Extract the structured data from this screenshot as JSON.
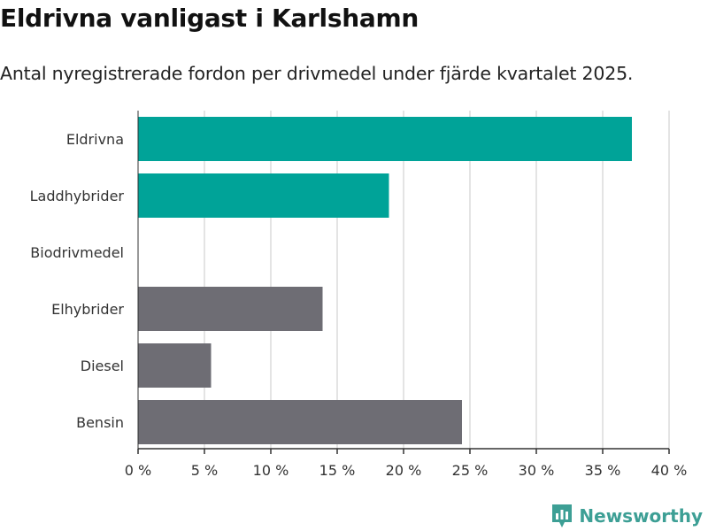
{
  "title": "Eldrivna vanligast i Karlshamn",
  "subtitle": "Antal nyregistrerade fordon per drivmedel under fjärde kvartalet 2025.",
  "brand": {
    "name": "Newsworthy",
    "icon": "newsworthy-logo-icon",
    "color": "#3d9f95"
  },
  "chart_data": {
    "type": "bar",
    "orientation": "horizontal",
    "categories": [
      "Eldrivna",
      "Laddhybrider",
      "Biodrivmedel",
      "Elhybrider",
      "Diesel",
      "Bensin"
    ],
    "values": [
      37.2,
      18.9,
      0,
      13.9,
      5.5,
      24.4
    ],
    "colors": [
      "#00a398",
      "#00a398",
      "#00a398",
      "#6e6d74",
      "#6e6d74",
      "#6e6d74"
    ],
    "xlim": [
      0,
      40
    ],
    "xticks": [
      0,
      5,
      10,
      15,
      20,
      25,
      30,
      35,
      40
    ],
    "tick_suffix": " %",
    "grid": true
  }
}
